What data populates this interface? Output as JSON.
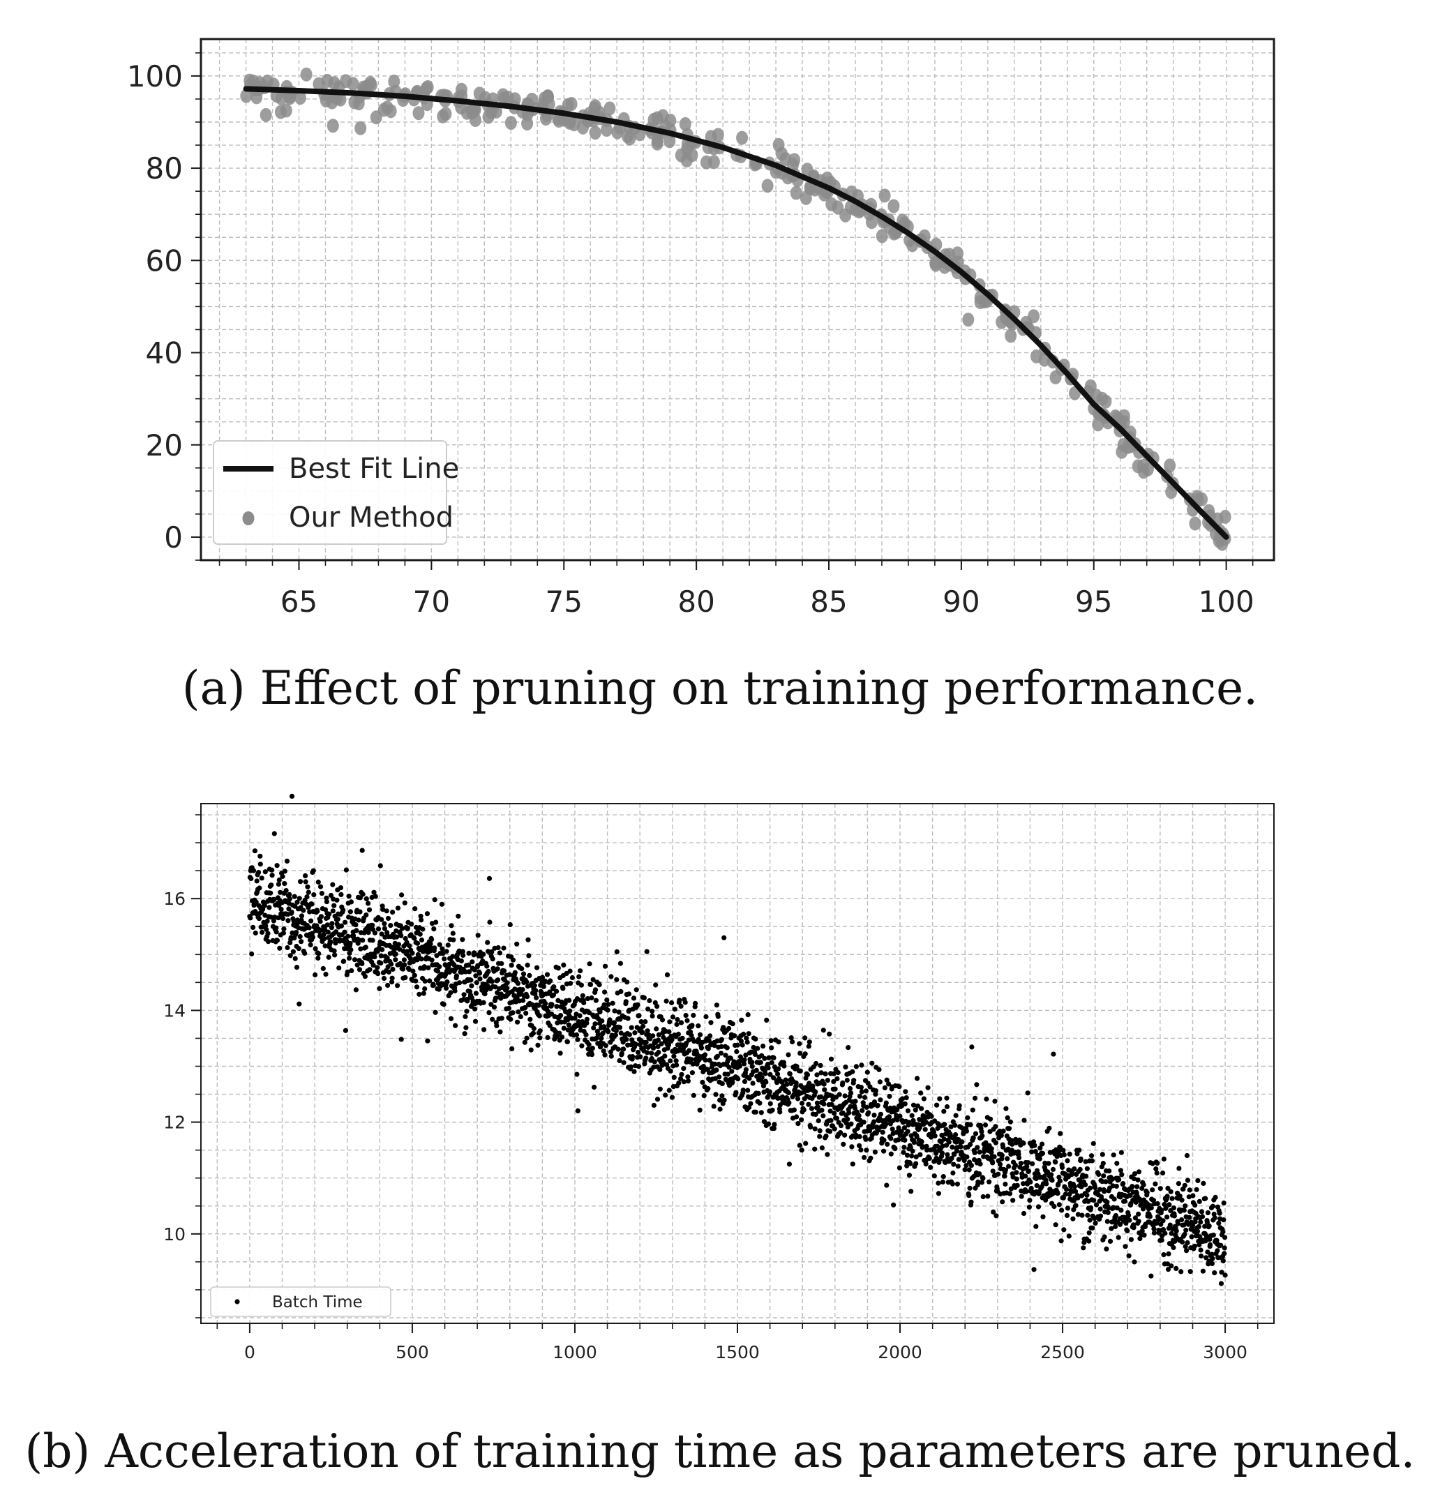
{
  "colors": {
    "axis": "#1a1a1a",
    "grid": "#bdbdbd",
    "fit_line": "#111111",
    "points_a": "#8c8c8c",
    "points_b": "#000000"
  },
  "figures": [
    {
      "caption": "(a) Effect of pruning on training performance.",
      "chart_data": {
        "type": "scatter",
        "title": "",
        "xlabel": "",
        "ylabel": "",
        "xlim": [
          61.3,
          101.8
        ],
        "ylim": [
          -5,
          108
        ],
        "xticks": [
          65,
          70,
          75,
          80,
          85,
          90,
          95,
          100
        ],
        "yticks": [
          0,
          20,
          40,
          60,
          80,
          100
        ],
        "grid": true,
        "legend_position": "lower-left",
        "series": [
          {
            "name": "Best Fit Line",
            "kind": "line",
            "x": [
              63,
              65,
              67,
              69,
              71,
              73,
              75,
              77,
              79,
              81,
              83,
              85,
              86,
              87,
              88,
              89,
              90,
              91,
              92,
              93,
              94,
              95,
              96,
              97,
              98,
              99,
              100
            ],
            "y": [
              97.2,
              96.8,
              96.3,
              95.6,
              94.6,
              93.4,
              91.9,
              90.0,
              87.6,
              84.5,
              80.6,
              75.7,
              72.8,
              69.5,
              65.9,
              61.9,
              57.5,
              52.6,
              47.3,
              41.6,
              35.4,
              28.8,
              23.5,
              17.6,
              11.7,
              5.8,
              0
            ]
          },
          {
            "name": "Our Method",
            "kind": "scatter",
            "count": 360,
            "x_range": [
              63,
              100
            ],
            "noise": 2.0
          }
        ]
      }
    },
    {
      "caption": "(b) Acceleration of training time as parameters are pruned.",
      "chart_data": {
        "type": "scatter",
        "title": "",
        "xlabel": "",
        "ylabel": "",
        "xlim": [
          -150,
          3150
        ],
        "ylim": [
          8.4,
          17.7
        ],
        "xticks": [
          0,
          500,
          1000,
          1500,
          2000,
          2500,
          3000
        ],
        "yticks": [
          10,
          12,
          14,
          16
        ],
        "grid": true,
        "legend_position": "lower-left",
        "series": [
          {
            "name": "Batch Time",
            "kind": "scatter",
            "count": 3000,
            "x_range": [
              0,
              3000
            ],
            "trend": {
              "start": 16.0,
              "end": 9.9
            },
            "noise": 0.42
          }
        ]
      }
    }
  ]
}
